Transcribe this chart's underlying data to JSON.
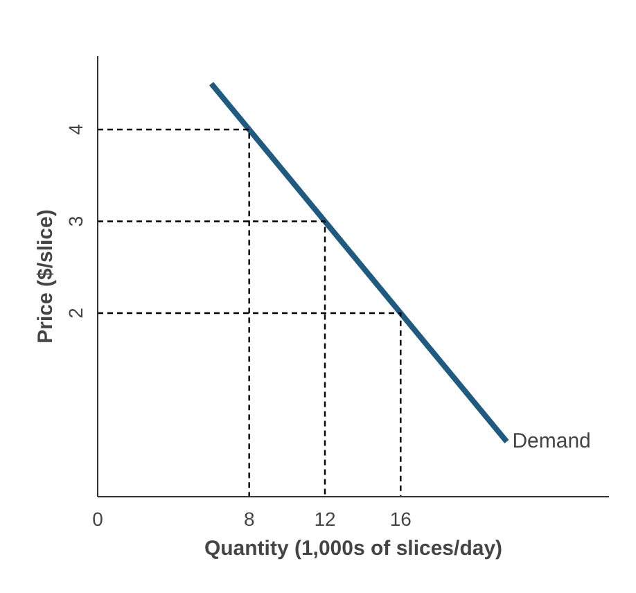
{
  "chart_data": {
    "type": "line",
    "xlabel": "Quantity (1,000s of slices/day)",
    "ylabel": "Price ($/slice)",
    "xlim": [
      0,
      27
    ],
    "ylim": [
      0,
      4.8
    ],
    "xticks": [
      0,
      8,
      12,
      16
    ],
    "yticks": [
      2,
      3,
      4
    ],
    "grid": false,
    "series": [
      {
        "name": "Demand",
        "color": "#1f5b80",
        "x": [
          6,
          21.6
        ],
        "values": [
          4.5,
          0.6
        ],
        "line_style": "solid"
      },
      {
        "color": "#000000",
        "x": [
          0,
          8,
          8
        ],
        "values": [
          4,
          4,
          0
        ],
        "line_style": "dashed"
      },
      {
        "color": "#000000",
        "x": [
          0,
          12,
          12
        ],
        "values": [
          3,
          3,
          0
        ],
        "line_style": "dashed"
      },
      {
        "color": "#000000",
        "x": [
          0,
          16,
          16
        ],
        "values": [
          2,
          2,
          0
        ],
        "line_style": "dashed"
      }
    ]
  }
}
